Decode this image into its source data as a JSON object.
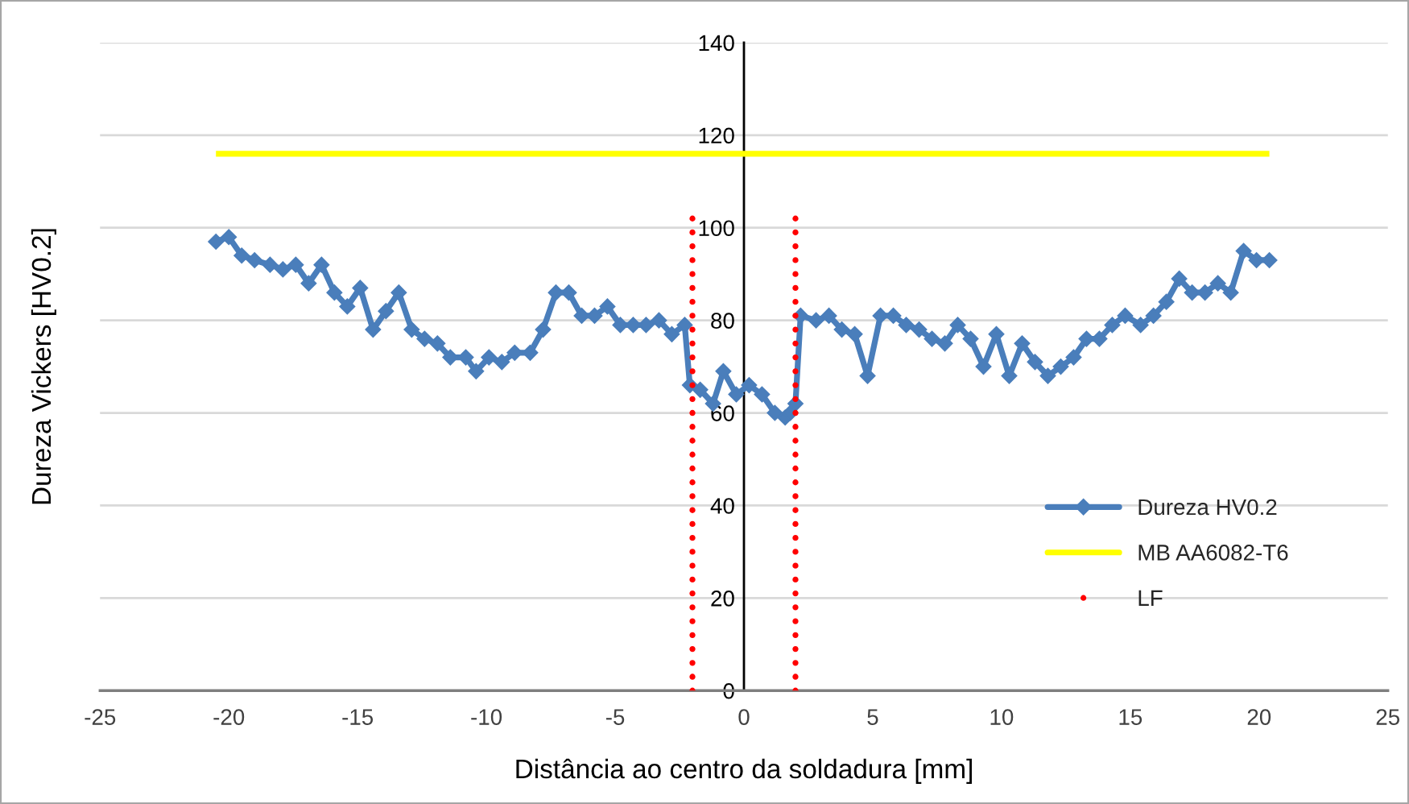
{
  "chart_data": {
    "type": "line",
    "xlabel": "Distância ao centro da soldadura [mm]",
    "ylabel": "Dureza Vickers [HV0.2]",
    "xlim": [
      -25,
      25
    ],
    "xticks": [
      -25,
      -20,
      -15,
      -10,
      -5,
      0,
      5,
      10,
      15,
      20,
      25
    ],
    "ylim": [
      0,
      140
    ],
    "yticks": [
      0,
      20,
      40,
      60,
      80,
      100,
      120,
      140
    ],
    "grid": "y",
    "legend": "bottom right",
    "series": [
      {
        "name": "Dureza HV0.2",
        "color": "#4a7ebb",
        "marker": "diamond",
        "x": [
          -20.5,
          -20.0,
          -19.5,
          -19.0,
          -18.4,
          -17.9,
          -17.4,
          -16.9,
          -16.4,
          -15.9,
          -15.4,
          -14.9,
          -14.4,
          -13.9,
          -13.4,
          -12.9,
          -12.4,
          -11.9,
          -11.4,
          -10.8,
          -10.4,
          -9.9,
          -9.4,
          -8.9,
          -8.3,
          -7.8,
          -7.3,
          -6.8,
          -6.3,
          -5.8,
          -5.3,
          -4.8,
          -4.3,
          -3.8,
          -3.3,
          -2.8,
          -2.3,
          -2.1,
          -1.7,
          -1.2,
          -0.8,
          -0.3,
          0.2,
          0.7,
          1.2,
          1.6,
          1.8,
          2.0,
          2.2,
          2.8,
          3.3,
          3.8,
          4.3,
          4.8,
          5.3,
          5.8,
          6.3,
          6.8,
          7.3,
          7.8,
          8.3,
          8.8,
          9.3,
          9.8,
          10.3,
          10.8,
          11.3,
          11.8,
          12.3,
          12.8,
          13.3,
          13.8,
          14.3,
          14.8,
          15.4,
          15.9,
          16.4,
          16.9,
          17.4,
          17.9,
          18.4,
          18.9,
          19.4,
          19.9,
          20.4
        ],
        "values": [
          97,
          98,
          94,
          93,
          92,
          91,
          92,
          88,
          92,
          86,
          83,
          87,
          78,
          82,
          86,
          78,
          76,
          75,
          72,
          72,
          69,
          72,
          71,
          73,
          73,
          78,
          86,
          86,
          81,
          81,
          83,
          79,
          79,
          79,
          80,
          77,
          79,
          66,
          65,
          62,
          69,
          64,
          66,
          64,
          60,
          59,
          60,
          62,
          81,
          80,
          81,
          78,
          77,
          68,
          81,
          81,
          79,
          78,
          76,
          75,
          79,
          76,
          70,
          77,
          68,
          75,
          71,
          68,
          70,
          72,
          76,
          76,
          79,
          81,
          79,
          81,
          84,
          89,
          86,
          86,
          88,
          86,
          95,
          93,
          93
        ]
      },
      {
        "name": "MB AA6082-T6",
        "color": "#ffff00",
        "marker": "none",
        "x": [
          -20.5,
          20.4
        ],
        "values": [
          116,
          116
        ]
      },
      {
        "name": "LF",
        "type": "scatter",
        "color": "#ff0000",
        "marker": "circle",
        "x": [
          -2,
          -2,
          -2,
          -2,
          -2,
          -2,
          -2,
          -2,
          -2,
          -2,
          -2,
          -2,
          -2,
          -2,
          -2,
          -2,
          -2,
          -2,
          -2,
          -2,
          -2,
          -2,
          -2,
          -2,
          -2,
          -2,
          -2,
          -2,
          -2,
          -2,
          -2,
          -2,
          -2,
          -2,
          -2,
          2,
          2,
          2,
          2,
          2,
          2,
          2,
          2,
          2,
          2,
          2,
          2,
          2,
          2,
          2,
          2,
          2,
          2,
          2,
          2,
          2,
          2,
          2,
          2,
          2,
          2,
          2,
          2,
          2,
          2,
          2,
          2,
          2,
          2,
          2
        ],
        "values": [
          0,
          3,
          6,
          9,
          12,
          15,
          18,
          21,
          24,
          27,
          30,
          33,
          36,
          39,
          42,
          45,
          48,
          51,
          54,
          57,
          60,
          63,
          66,
          69,
          72,
          75,
          78,
          81,
          84,
          87,
          90,
          93,
          96,
          99,
          102,
          0,
          3,
          6,
          9,
          12,
          15,
          18,
          21,
          24,
          27,
          30,
          33,
          36,
          39,
          42,
          45,
          48,
          51,
          54,
          57,
          60,
          63,
          66,
          69,
          72,
          75,
          78,
          81,
          84,
          87,
          90,
          93,
          96,
          99,
          102
        ]
      }
    ]
  }
}
